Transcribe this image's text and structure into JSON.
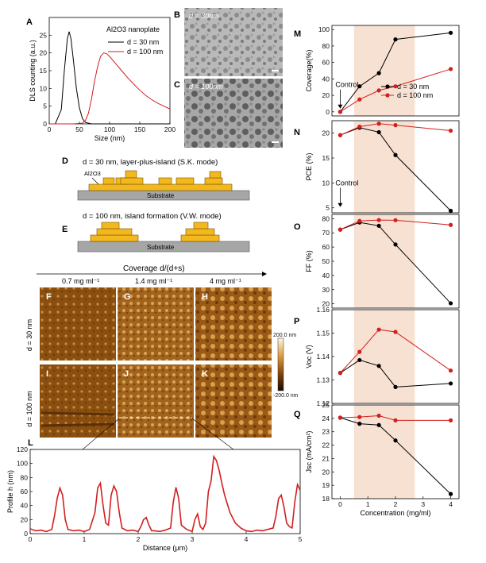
{
  "panel_letters": {
    "A": "A",
    "B": "B",
    "C": "C",
    "D": "D",
    "E": "E",
    "F": "F",
    "G": "G",
    "H": "H",
    "I": "I",
    "J": "J",
    "K": "K",
    "L": "L",
    "M": "M",
    "N": "N",
    "O": "O",
    "P": "P",
    "Q": "Q"
  },
  "colors": {
    "black": "#000000",
    "red": "#d21f1f",
    "shade": "#f6e1d3",
    "gold": "#f2b81e",
    "substrate": "#a6a6a6"
  },
  "tem": {
    "b_label": "d = 30nm",
    "c_label": "d = 100nm"
  },
  "schematic": {
    "d_title": "d = 30 nm, layer-plus-island (S.K. mode)",
    "d_material": "Al2O3",
    "e_title": "d = 100 nm, island formation (V.W. mode)",
    "substrate": "Substrate"
  },
  "afm": {
    "coverage_title": "Coverage d/(d+s)",
    "concentrations": [
      "0.7 mg ml⁻¹",
      "1.4 mg ml⁻¹",
      "4 mg ml⁻¹"
    ],
    "row_labels": [
      "d = 30 nm",
      "d = 100 nm"
    ],
    "colorbar": {
      "max": "200.0 nm",
      "min": "-200.0 nm"
    }
  },
  "chart_data": [
    {
      "id": "A",
      "type": "line",
      "legend_title": "Al2O3 nanoplate",
      "xlabel": "Size (nm)",
      "ylabel": "DLS counting (a.u.)",
      "xlim": [
        0,
        200
      ],
      "ylim": [
        0,
        30
      ],
      "xticks": [
        0,
        50,
        100,
        150,
        200
      ],
      "yticks": [
        0,
        5,
        10,
        15,
        20,
        25
      ],
      "series": [
        {
          "name": "d = 30 nm",
          "color": "#000000",
          "x": [
            0,
            10,
            20,
            25,
            30,
            33,
            36,
            40,
            45,
            50,
            55,
            60,
            70,
            80,
            100,
            200
          ],
          "y": [
            0,
            0,
            4,
            15,
            24,
            26,
            24,
            18,
            10,
            4.5,
            1.5,
            0.4,
            0,
            0,
            0,
            0
          ]
        },
        {
          "name": "d = 100 nm",
          "color": "#d21f1f",
          "x": [
            0,
            40,
            55,
            60,
            65,
            70,
            75,
            80,
            85,
            90,
            95,
            100,
            110,
            120,
            130,
            140,
            150,
            160,
            170,
            180,
            190,
            200
          ],
          "y": [
            0,
            0,
            0.2,
            1,
            3,
            7,
            12,
            16,
            19,
            20,
            19.8,
            19,
            17,
            15,
            13,
            11.2,
            9.5,
            8,
            6.8,
            5.8,
            5,
            4.2
          ]
        }
      ]
    },
    {
      "id": "L",
      "type": "line",
      "xlabel": "Distance (μm)",
      "ylabel": "Profile h (nm)",
      "xlim": [
        0,
        5
      ],
      "ylim": [
        0,
        120
      ],
      "xticks": [
        0,
        1,
        2,
        3,
        4,
        5
      ],
      "yticks": [
        0,
        20,
        40,
        60,
        80,
        100,
        120
      ],
      "series": [
        {
          "name": "",
          "color": "#d21f1f",
          "x": [
            0,
            0.1,
            0.2,
            0.3,
            0.4,
            0.45,
            0.5,
            0.55,
            0.6,
            0.65,
            0.7,
            0.8,
            0.9,
            1.0,
            1.1,
            1.2,
            1.25,
            1.3,
            1.35,
            1.4,
            1.45,
            1.5,
            1.55,
            1.6,
            1.65,
            1.7,
            1.8,
            1.9,
            2.0,
            2.05,
            2.1,
            2.15,
            2.2,
            2.25,
            2.3,
            2.4,
            2.5,
            2.6,
            2.65,
            2.7,
            2.75,
            2.8,
            2.9,
            3.0,
            3.05,
            3.1,
            3.15,
            3.2,
            3.25,
            3.3,
            3.35,
            3.4,
            3.45,
            3.5,
            3.55,
            3.6,
            3.7,
            3.8,
            3.9,
            4.0,
            4.1,
            4.2,
            4.3,
            4.4,
            4.5,
            4.55,
            4.6,
            4.65,
            4.7,
            4.75,
            4.8,
            4.85,
            4.9,
            4.95,
            5.0
          ],
          "y": [
            7,
            4,
            5,
            3,
            6,
            25,
            50,
            65,
            55,
            20,
            6,
            4,
            5,
            3,
            6,
            30,
            65,
            72,
            40,
            15,
            12,
            55,
            68,
            60,
            30,
            8,
            4,
            5,
            3,
            10,
            20,
            23,
            12,
            4,
            4,
            3,
            5,
            8,
            45,
            66,
            50,
            12,
            6,
            3,
            20,
            28,
            10,
            6,
            15,
            60,
            75,
            110,
            104,
            90,
            72,
            55,
            30,
            15,
            8,
            4,
            3,
            5,
            4,
            6,
            8,
            25,
            50,
            55,
            38,
            15,
            10,
            8,
            45,
            70,
            62
          ]
        }
      ]
    },
    {
      "id": "M",
      "type": "line",
      "ylabel": "Coverage(%)",
      "ylim": [
        -5,
        105
      ],
      "yticks": [
        0,
        20,
        40,
        60,
        80,
        100
      ],
      "series": [
        {
          "name": "d = 30 nm",
          "color": "#000000",
          "x": [
            0,
            0.7,
            1.4,
            2,
            4
          ],
          "y": [
            0,
            31,
            47,
            88,
            96
          ]
        },
        {
          "name": "d = 100 nm",
          "color": "#d21f1f",
          "x": [
            0,
            0.7,
            1.4,
            2,
            4
          ],
          "y": [
            0,
            15,
            26,
            31,
            52
          ]
        }
      ],
      "annotation": "Control"
    },
    {
      "id": "N",
      "type": "line",
      "ylabel": "PCE (%)",
      "ylim": [
        4,
        22.5
      ],
      "yticks": [
        5,
        10,
        15,
        20
      ],
      "series": [
        {
          "name": "d = 30 nm",
          "color": "#000000",
          "x": [
            0,
            0.7,
            1.4,
            2,
            4
          ],
          "y": [
            19.6,
            21.1,
            20.2,
            15.6,
            4.4
          ]
        },
        {
          "name": "d = 100 nm",
          "color": "#d21f1f",
          "x": [
            0,
            0.7,
            1.4,
            2,
            4
          ],
          "y": [
            19.6,
            21.3,
            21.9,
            21.6,
            20.5
          ]
        }
      ],
      "annotation": "Control"
    },
    {
      "id": "O",
      "type": "line",
      "ylabel": "FF (%)",
      "ylim": [
        17,
        83
      ],
      "yticks": [
        20,
        30,
        40,
        50,
        60,
        70,
        80
      ],
      "series": [
        {
          "name": "d = 30 nm",
          "color": "#000000",
          "x": [
            0,
            0.7,
            1.4,
            2,
            4
          ],
          "y": [
            72.3,
            77.3,
            75,
            61.8,
            20.4
          ]
        },
        {
          "name": "d = 100 nm",
          "color": "#d21f1f",
          "x": [
            0,
            0.7,
            1.4,
            2,
            4
          ],
          "y": [
            72.3,
            78.4,
            79,
            78.9,
            75.6
          ]
        }
      ]
    },
    {
      "id": "P",
      "type": "line",
      "ylabel": "Voc (V)",
      "ylim": [
        1.12,
        1.16
      ],
      "yticks": [
        1.12,
        1.13,
        1.14,
        1.15,
        1.16
      ],
      "series": [
        {
          "name": "d = 30 nm",
          "color": "#000000",
          "x": [
            0,
            0.7,
            1.4,
            2,
            4
          ],
          "y": [
            1.133,
            1.1385,
            1.136,
            1.127,
            1.1285
          ]
        },
        {
          "name": "d = 100 nm",
          "color": "#d21f1f",
          "x": [
            0,
            0.7,
            1.4,
            2,
            4
          ],
          "y": [
            1.133,
            1.142,
            1.1515,
            1.1505,
            1.134
          ]
        }
      ]
    },
    {
      "id": "Q",
      "type": "line",
      "ylabel": "Jsc (mA/cm²)",
      "xlabel": "Concentration (mg/ml)",
      "ylim": [
        18,
        25
      ],
      "yticks": [
        18,
        19,
        20,
        21,
        22,
        23,
        24,
        25
      ],
      "xlim": [
        -0.3,
        4.3
      ],
      "xticks": [
        0,
        1,
        2,
        3,
        4
      ],
      "series": [
        {
          "name": "d = 30 nm",
          "color": "#000000",
          "x": [
            0,
            0.7,
            1.4,
            2,
            4
          ],
          "y": [
            24.05,
            23.6,
            23.5,
            22.35,
            18.35
          ]
        },
        {
          "name": "d = 100 nm",
          "color": "#d21f1f",
          "x": [
            0,
            0.7,
            1.4,
            2,
            4
          ],
          "y": [
            24.05,
            24.1,
            24.2,
            23.85,
            23.85
          ]
        }
      ],
      "shade_x": [
        0.5,
        2.7
      ]
    }
  ]
}
